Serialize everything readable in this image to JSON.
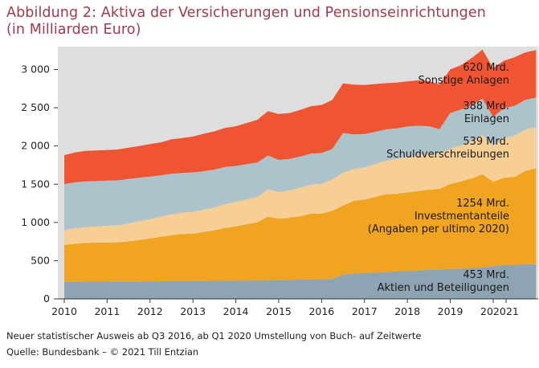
{
  "title_line1": "Abbildung 2: Aktiva der Versicherungen und Pensionseinrichtungen",
  "title_line2": "(in Milliarden Euro)",
  "footnote_line1": "Neuer statistischer Ausweis ab Q3 2016, ab Q1 2020 Umstellung von Buch- auf Zeitwerte",
  "footnote_line2": "Quelle: Bundesbank – © 2021 Till Entzian",
  "colors": {
    "panel": "#dedede",
    "aktien": "#8fa4b2",
    "investment": "#f1a420",
    "schuld": "#f7cf95",
    "einlagen": "#adc3cc",
    "sonstige": "#ef5532"
  },
  "chart_data": {
    "type": "area",
    "stacked": true,
    "x_start": 2010.0,
    "x_step": 0.25,
    "ylim": [
      0,
      3300
    ],
    "yticks": [
      0,
      500,
      1000,
      1500,
      2000,
      2500,
      3000
    ],
    "ytick_labels": [
      "0",
      "500",
      "1 000",
      "1 500",
      "2 000",
      "2 500",
      "3 000"
    ],
    "xticks": [
      2010,
      2011,
      2012,
      2013,
      2014,
      2015,
      2016,
      2017,
      2018,
      2019,
      2020
    ],
    "xtick_labels": [
      "2010",
      "2011",
      "2012",
      "2013",
      "2014",
      "2015",
      "2016",
      "2017",
      "2018",
      "2019",
      "2020"
    ],
    "xtick_extra_label": "21",
    "xlim": [
      2009.85,
      2021.05
    ],
    "grid": false,
    "series": [
      {
        "key": "aktien",
        "label_lines": [
          "453 Mrd.",
          "Aktien und Beteiligungen"
        ],
        "values": [
          225,
          225,
          226,
          226,
          227,
          228,
          228,
          229,
          230,
          231,
          232,
          233,
          234,
          235,
          236,
          237,
          239,
          241,
          243,
          245,
          248,
          250,
          252,
          254,
          257,
          262,
          320,
          332,
          338,
          345,
          352,
          360,
          365,
          370,
          378,
          385,
          392,
          397,
          405,
          410,
          430,
          445,
          445,
          455,
          453
        ]
      },
      {
        "key": "investment",
        "label_lines": [
          "1254 Mrd.",
          "Investmentanteile",
          "(Angaben per ultimo 2020)"
        ],
        "values": [
          480,
          495,
          505,
          510,
          510,
          512,
          525,
          540,
          560,
          580,
          600,
          615,
          620,
          640,
          660,
          690,
          710,
          735,
          760,
          830,
          800,
          810,
          830,
          860,
          860,
          890,
          900,
          950,
          960,
          990,
          1015,
          1015,
          1030,
          1040,
          1050,
          1055,
          1110,
          1140,
          1170,
          1220,
          1100,
          1140,
          1150,
          1220,
          1254
        ]
      },
      {
        "key": "schuld",
        "label_lines": [
          "539 Mrd.",
          "Schuldverschreibungen"
        ],
        "values": [
          195,
          205,
          210,
          210,
          220,
          225,
          235,
          245,
          255,
          265,
          275,
          280,
          285,
          290,
          300,
          310,
          320,
          325,
          330,
          360,
          350,
          360,
          370,
          380,
          390,
          410,
          430,
          420,
          420,
          430,
          440,
          455,
          460,
          470,
          470,
          460,
          460,
          470,
          490,
          510,
          470,
          520,
          540,
          540,
          539
        ]
      },
      {
        "key": "einlagen",
        "label_lines": [
          "388 Mrd.",
          "Einlagen"
        ],
        "values": [
          600,
          600,
          595,
          595,
          590,
          585,
          580,
          570,
          555,
          540,
          530,
          520,
          515,
          505,
          495,
          490,
          470,
          460,
          450,
          440,
          420,
          410,
          410,
          405,
          400,
          400,
          520,
          450,
          440,
          420,
          410,
          400,
          400,
          385,
          360,
          320,
          470,
          470,
          470,
          480,
          380,
          390,
          390,
          388,
          388
        ]
      },
      {
        "key": "sonstige",
        "label_lines": [
          "620 Mrd.",
          "Sonstige Anlagen"
        ],
        "values": [
          380,
          390,
          400,
          400,
          400,
          405,
          410,
          415,
          425,
          430,
          450,
          455,
          470,
          490,
          500,
          510,
          520,
          540,
          560,
          580,
          600,
          600,
          610,
          620,
          630,
          640,
          650,
          650,
          640,
          625,
          605,
          600,
          590,
          595,
          590,
          585,
          570,
          580,
          615,
          640,
          640,
          620,
          635,
          620,
          620
        ]
      }
    ]
  }
}
